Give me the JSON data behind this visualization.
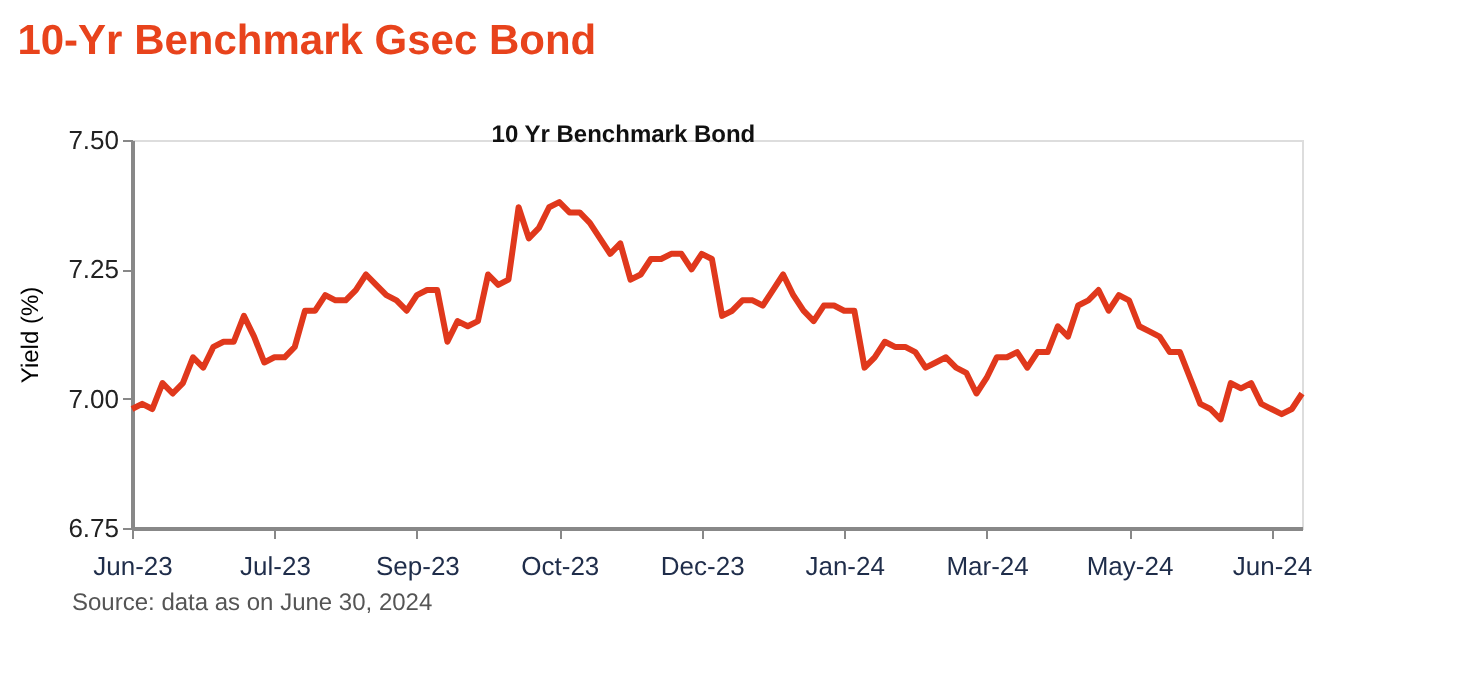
{
  "chart_data": {
    "type": "line",
    "title": "10-Yr Benchmark Gsec Bond",
    "subtitle": "10 Yr Benchmark Bond",
    "ylabel": "Yield (%)",
    "annotations": [
      "Source: data as on June 30, 2024"
    ],
    "categories": [
      "Jun-23",
      null,
      null,
      null,
      null,
      null,
      null,
      null,
      null,
      null,
      null,
      null,
      null,
      null,
      "Jul-23",
      null,
      null,
      null,
      null,
      null,
      null,
      null,
      null,
      null,
      null,
      null,
      null,
      null,
      "Sep-23",
      null,
      null,
      null,
      null,
      null,
      null,
      null,
      null,
      null,
      null,
      null,
      null,
      null,
      "Oct-23",
      null,
      null,
      null,
      null,
      null,
      null,
      null,
      null,
      null,
      null,
      null,
      null,
      null,
      "Dec-23",
      null,
      null,
      null,
      null,
      null,
      null,
      null,
      null,
      null,
      null,
      null,
      null,
      null,
      "Jan-24",
      null,
      null,
      null,
      null,
      null,
      null,
      null,
      null,
      null,
      null,
      null,
      null,
      null,
      "Mar-24",
      null,
      null,
      null,
      null,
      null,
      null,
      null,
      null,
      null,
      null,
      null,
      null,
      null,
      "May-24",
      null,
      null,
      null,
      null,
      null,
      null,
      null,
      null,
      null,
      null,
      null,
      null,
      null,
      "Jun-24",
      null,
      null,
      null
    ],
    "series": [
      {
        "color": "#e0381c",
        "values": [
          6.98,
          6.99,
          6.98,
          7.03,
          7.01,
          7.03,
          7.08,
          7.06,
          7.1,
          7.11,
          7.11,
          7.16,
          7.12,
          7.07,
          7.08,
          7.08,
          7.1,
          7.17,
          7.17,
          7.2,
          7.19,
          7.19,
          7.21,
          7.24,
          7.22,
          7.2,
          7.19,
          7.17,
          7.2,
          7.21,
          7.21,
          7.11,
          7.15,
          7.14,
          7.15,
          7.24,
          7.22,
          7.23,
          7.37,
          7.31,
          7.33,
          7.37,
          7.38,
          7.36,
          7.36,
          7.34,
          7.31,
          7.28,
          7.3,
          7.23,
          7.24,
          7.27,
          7.27,
          7.28,
          7.28,
          7.25,
          7.28,
          7.27,
          7.16,
          7.17,
          7.19,
          7.19,
          7.18,
          7.21,
          7.24,
          7.2,
          7.17,
          7.15,
          7.18,
          7.18,
          7.17,
          7.17,
          7.06,
          7.08,
          7.11,
          7.1,
          7.1,
          7.09,
          7.06,
          7.07,
          7.08,
          7.06,
          7.05,
          7.01,
          7.04,
          7.08,
          7.08,
          7.09,
          7.06,
          7.09,
          7.09,
          7.14,
          7.12,
          7.18,
          7.19,
          7.21,
          7.17,
          7.2,
          7.19,
          7.14,
          7.13,
          7.12,
          7.09,
          7.09,
          7.04,
          6.99,
          6.98,
          6.96,
          7.03,
          7.02,
          7.03,
          6.99,
          6.98,
          6.97,
          6.98,
          7.01
        ]
      }
    ],
    "ylim": [
      6.75,
      7.5
    ],
    "yticks": [
      {
        "value": 6.75,
        "label": "6.75"
      },
      {
        "value": 7,
        "label": "7.00"
      },
      {
        "value": 7.25,
        "label": "7.25"
      },
      {
        "value": 7.5,
        "label": "7.50"
      }
    ],
    "grid": false,
    "line_style": "solid",
    "marker": "none"
  }
}
